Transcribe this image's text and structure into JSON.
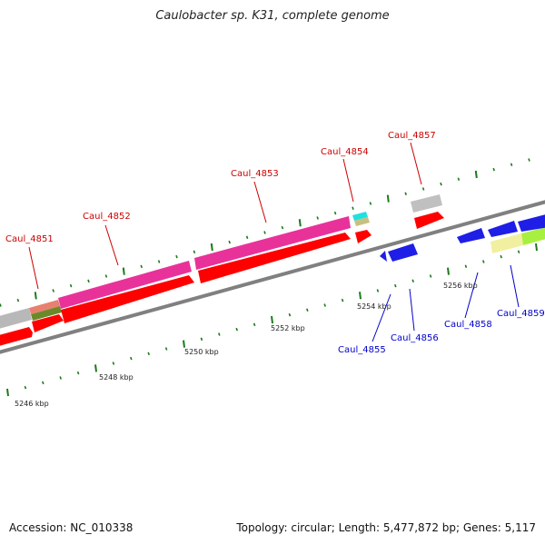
{
  "title": "Caulobacter sp. K31, complete genome",
  "footer": {
    "accession": "Accession: NC_010338",
    "summary": "Topology: circular; Length: 5,477,872 bp; Genes: 5,117"
  },
  "colors": {
    "background": "#ffffff",
    "backbone": "#808080",
    "tick": "#1a7a1a",
    "top_label": "#cc0000",
    "bottom_label": "#0000cc",
    "magenta": "#e8329a",
    "red": "#ff0000",
    "blue": "#1e1ee6",
    "grey": "#b8b8b8",
    "cyan": "#22e0e0",
    "olive": "#7a9a30",
    "tan": "#c8c080",
    "salmon": "#e88070",
    "lightyellow": "#f0f0a0",
    "lime": "#a8f040"
  },
  "scale_labels": [
    "5246 kbp",
    "5248 kbp",
    "5250 kbp",
    "5252 kbp",
    "5254 kbp",
    "5256 kbp"
  ],
  "gene_labels_top": [
    "Caul_4851",
    "Caul_4852",
    "Caul_4853",
    "Caul_4854",
    "Caul_4857"
  ],
  "gene_labels_bottom": [
    "Caul_4855",
    "Caul_4856",
    "Caul_4858",
    "Caul_4859"
  ]
}
